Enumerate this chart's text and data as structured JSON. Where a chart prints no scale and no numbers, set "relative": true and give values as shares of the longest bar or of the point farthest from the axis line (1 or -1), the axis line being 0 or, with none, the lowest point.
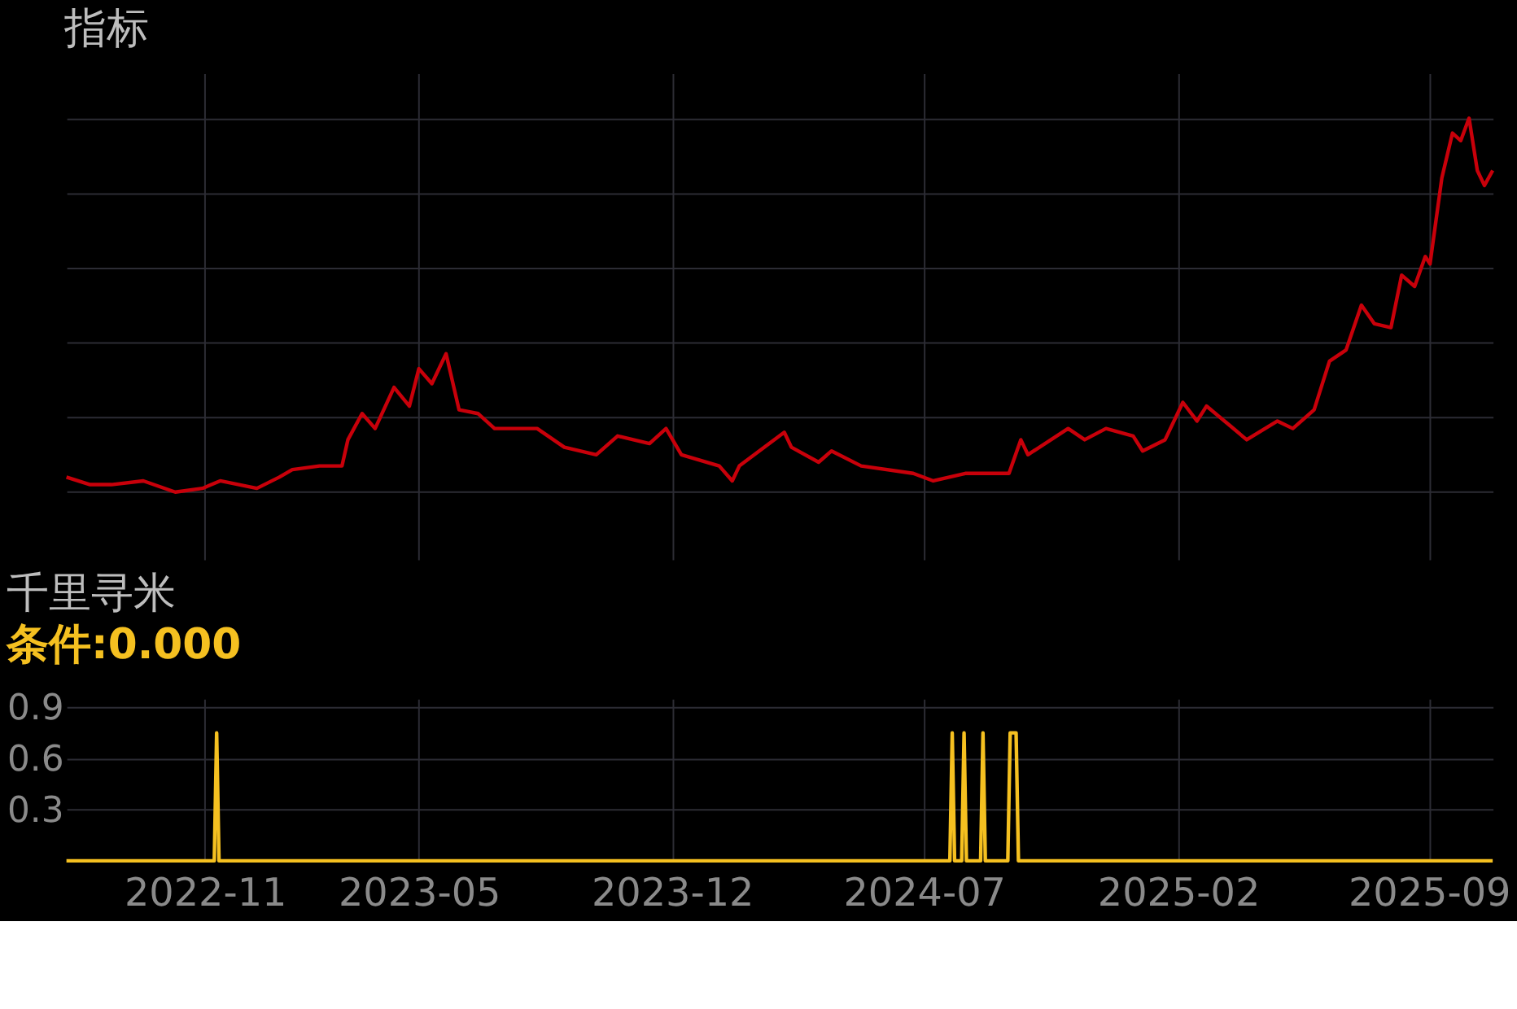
{
  "chart_data": [
    {
      "type": "line",
      "title": "指标",
      "relative": true,
      "grid": true,
      "tick_labels": false,
      "xlim": [
        "2022-07-07",
        "2025-10-25"
      ],
      "xticks": [
        {
          "value": "2022-11-01",
          "label": null
        },
        {
          "value": "2023-05-01",
          "label": null
        },
        {
          "value": "2023-12-01",
          "label": null
        },
        {
          "value": "2024-07-01",
          "label": null
        },
        {
          "value": "2025-02-01",
          "label": null
        },
        {
          "value": "2025-09-01",
          "label": null
        }
      ],
      "series": [
        {
          "color": "#c8000a",
          "x": [
            "2022-07-07",
            "2022-07-27",
            "2022-08-14",
            "2022-09-10",
            "2022-10-07",
            "2022-10-30",
            "2022-11-14",
            "2022-12-15",
            "2023-01-03",
            "2023-01-14",
            "2023-02-06",
            "2023-02-25",
            "2023-03-02",
            "2023-03-14",
            "2023-03-25",
            "2023-04-10",
            "2023-04-23",
            "2023-05-01",
            "2023-05-12",
            "2023-05-24",
            "2023-06-04",
            "2023-06-20",
            "2023-07-04",
            "2023-08-09",
            "2023-09-01",
            "2023-09-28",
            "2023-10-16",
            "2023-11-12",
            "2023-11-26",
            "2023-12-09",
            "2024-01-10",
            "2024-01-21",
            "2024-01-27",
            "2024-03-05",
            "2024-03-11",
            "2024-04-03",
            "2024-04-14",
            "2024-05-09",
            "2024-06-22",
            "2024-07-09",
            "2024-08-05",
            "2024-09-11",
            "2024-09-21",
            "2024-09-27",
            "2024-10-31",
            "2024-11-14",
            "2024-12-02",
            "2024-12-25",
            "2025-01-02",
            "2025-01-21",
            "2025-02-05",
            "2025-02-17",
            "2025-02-25",
            "2025-03-16",
            "2025-03-31",
            "2025-04-26",
            "2025-05-09",
            "2025-05-27",
            "2025-06-09",
            "2025-06-23",
            "2025-07-06",
            "2025-07-17",
            "2025-07-31",
            "2025-08-09",
            "2025-08-20",
            "2025-08-29",
            "2025-09-02",
            "2025-09-12",
            "2025-09-21",
            "2025-09-28",
            "2025-10-05",
            "2025-10-12",
            "2025-10-18",
            "2025-10-25"
          ],
          "values": [
            0.04,
            0.02,
            0.02,
            0.03,
            0.0,
            0.01,
            0.03,
            0.01,
            0.04,
            0.06,
            0.07,
            0.07,
            0.14,
            0.21,
            0.17,
            0.28,
            0.23,
            0.33,
            0.29,
            0.37,
            0.22,
            0.21,
            0.17,
            0.17,
            0.12,
            0.1,
            0.15,
            0.13,
            0.17,
            0.1,
            0.07,
            0.03,
            0.07,
            0.16,
            0.12,
            0.08,
            0.11,
            0.07,
            0.05,
            0.03,
            0.05,
            0.05,
            0.14,
            0.1,
            0.17,
            0.14,
            0.17,
            0.15,
            0.11,
            0.14,
            0.24,
            0.19,
            0.23,
            0.18,
            0.14,
            0.19,
            0.17,
            0.22,
            0.35,
            0.38,
            0.5,
            0.45,
            0.44,
            0.58,
            0.55,
            0.63,
            0.61,
            0.84,
            0.96,
            0.94,
            1.0,
            0.86,
            0.82,
            0.86
          ]
        }
      ]
    },
    {
      "type": "line",
      "title": "千里寻米",
      "subtitle": "条件:0.000",
      "grid": true,
      "xlim": [
        "2022-07-07",
        "2025-10-25"
      ],
      "xticks": [
        {
          "value": "2022-11-01",
          "label": "2022-11"
        },
        {
          "value": "2023-05-01",
          "label": "2023-05"
        },
        {
          "value": "2023-12-01",
          "label": "2023-12"
        },
        {
          "value": "2024-07-01",
          "label": "2024-07"
        },
        {
          "value": "2025-02-01",
          "label": "2025-02"
        },
        {
          "value": "2025-09-01",
          "label": "2025-09"
        }
      ],
      "ylim": [
        0,
        0.95
      ],
      "yticks": [
        0.3,
        0.6,
        0.9
      ],
      "series": [
        {
          "color": "#f5c020",
          "x": [
            "2022-07-07",
            "2022-11-09",
            "2022-11-11",
            "2022-11-13",
            "2024-07-23",
            "2024-07-25",
            "2024-07-27",
            "2024-08-02",
            "2024-08-04",
            "2024-08-06",
            "2024-08-18",
            "2024-08-20",
            "2024-08-22",
            "2024-09-10",
            "2024-09-12",
            "2024-09-17",
            "2024-09-19",
            "2025-10-25"
          ],
          "values": [
            0,
            0,
            0.75,
            0,
            0,
            0.75,
            0,
            0,
            0.75,
            0,
            0,
            0.75,
            0,
            0,
            0.75,
            0.75,
            0,
            0
          ]
        }
      ]
    }
  ]
}
